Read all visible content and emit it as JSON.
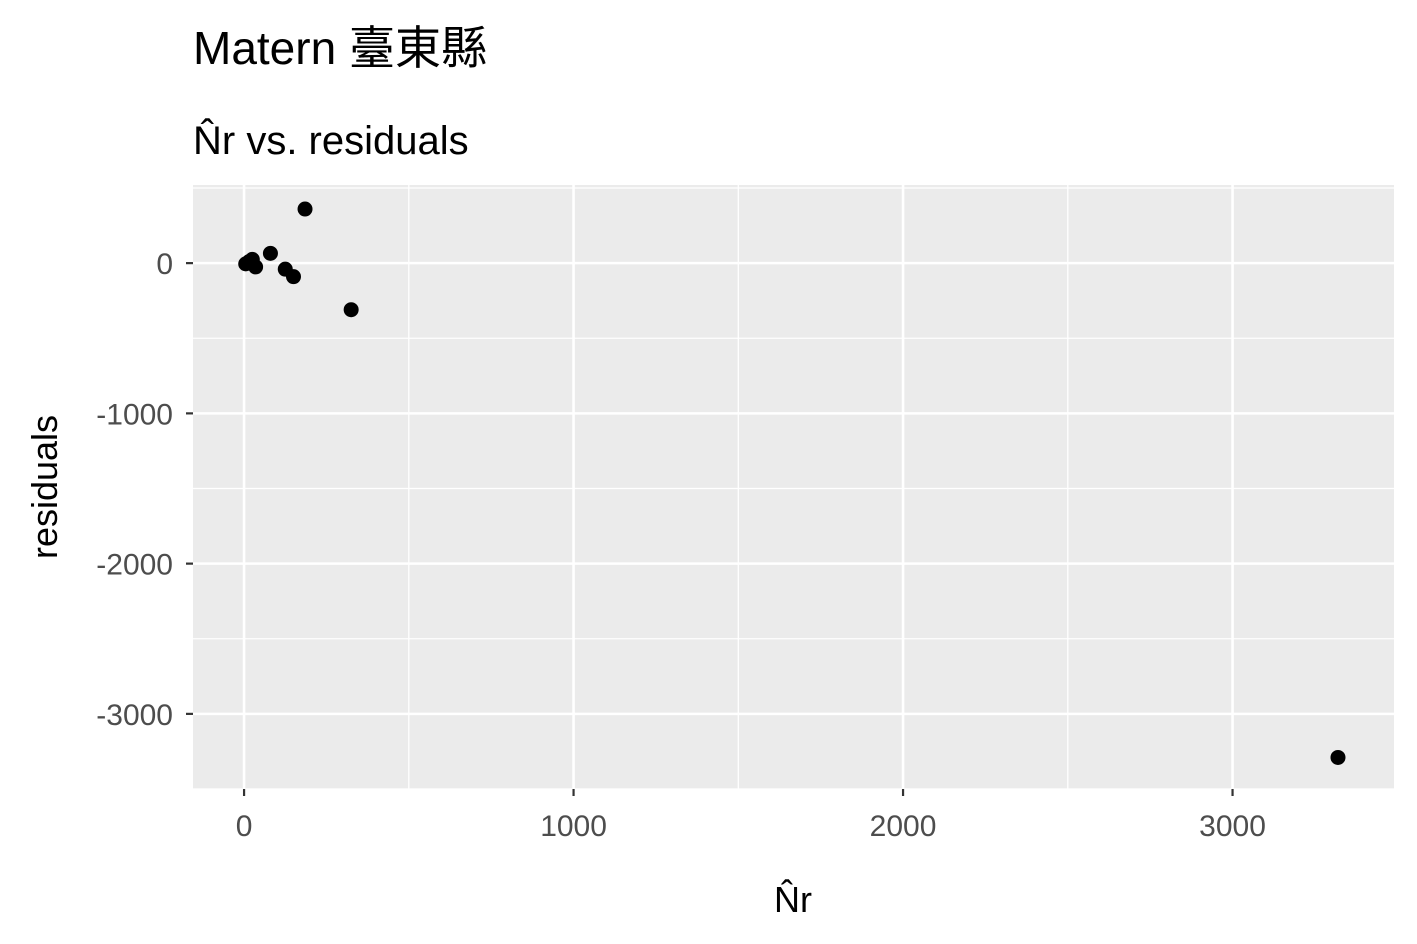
{
  "chart_data": {
    "type": "scatter",
    "title": "Matern 臺東縣",
    "subtitle": "N̂r vs. residuals",
    "xlabel": "N̂r",
    "ylabel": "residuals",
    "xlim": [
      -155,
      3490
    ],
    "ylim": [
      -3500,
      520
    ],
    "x_ticks": [
      0,
      1000,
      2000,
      3000
    ],
    "x_tick_labels": [
      "0",
      "1000",
      "2000",
      "3000"
    ],
    "y_ticks": [
      0,
      -1000,
      -2000,
      -3000
    ],
    "y_tick_labels": [
      "0",
      "-1000",
      "-2000",
      "-3000"
    ],
    "grid": true,
    "legend": "none",
    "points": [
      {
        "x": 5,
        "y": -5
      },
      {
        "x": 15,
        "y": 10
      },
      {
        "x": 25,
        "y": 25
      },
      {
        "x": 35,
        "y": -25
      },
      {
        "x": 80,
        "y": 65
      },
      {
        "x": 125,
        "y": -40
      },
      {
        "x": 150,
        "y": -90
      },
      {
        "x": 185,
        "y": 360
      },
      {
        "x": 325,
        "y": -310
      },
      {
        "x": 3320,
        "y": -3290
      }
    ],
    "colors": {
      "point": "#000000",
      "panel": "#ebebeb",
      "grid": "#ffffff"
    }
  }
}
